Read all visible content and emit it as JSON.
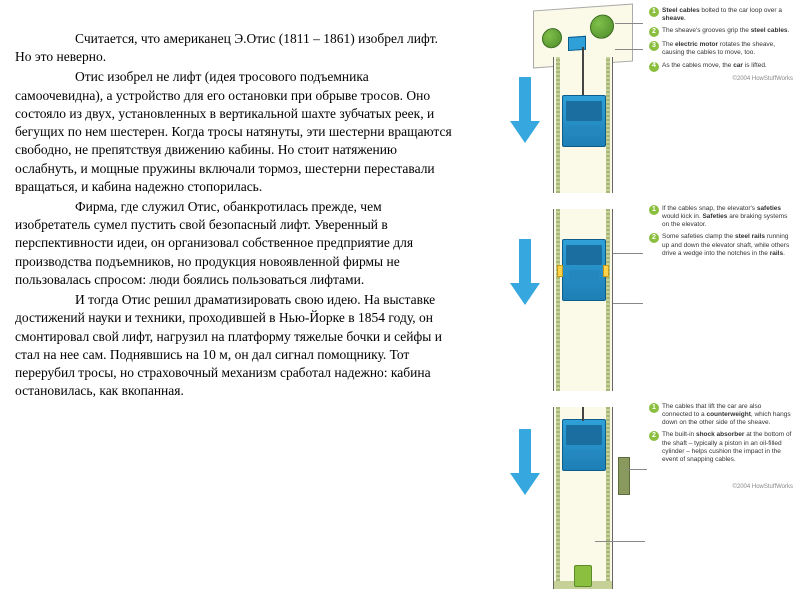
{
  "text": {
    "p1": "Считается, что американец Э.Отис (1811 – 1861) изобрел лифт. Но это неверно.",
    "p2": "Отис изобрел не лифт (идея тросового подъемника самоочевидна), а устройство для его остановки при обрыве тросов. Оно состояло из двух, установленных в вертикальной шахте зубчатых реек, и бегущих по нем шестерен. Когда тросы натянуты, эти шестерни вращаются свободно, не препятствуя движению кабины. Но стоит натяжению ослабнуть, и мощные пружины включали тормоз, шестерни переставали вращаться, и кабина надежно стопорилась.",
    "p3": "Фирма, где служил Отис, обанкротилась прежде, чем изобретатель сумел пустить свой безопасный лифт. Уверенный в перспективности идеи, он организовал собственное предприятие для производства подъемников, но продукция новоявленной фирмы не пользовалась спросом: люди боялись пользоваться лифтами.",
    "p4": "И тогда Отис решил драматизировать свою идею. На выставке достижений науки и техники, проходившей в Нью-Йорке в 1854 году, он смонтировал свой лифт, нагрузил на платформу тяжелые бочки и сейфы и стал на нее сам. Поднявшись на 10 м, он дал сигнал помощнику. Тот перерубил тросы, но страховочный механизм сработал надежно: кабина остановилась, как вкопанная."
  },
  "panels": [
    {
      "notes": [
        {
          "n": "1",
          "html": "<b>Steel cables</b> bolted to the car loop over a <b>sheave</b>."
        },
        {
          "n": "2",
          "html": "The sheave's grooves grip the <b>steel cables</b>."
        },
        {
          "n": "3",
          "html": "The <b>electric motor</b> rotates the sheave, causing the cables to move, too."
        },
        {
          "n": "4",
          "html": "As the cables move, the <b>car</b> is lifted."
        }
      ],
      "copyright": "©2004 HowStuffWorks"
    },
    {
      "notes": [
        {
          "n": "1",
          "html": "If the cables snap, the elevator's <b>safeties</b> would kick in. <b>Safeties</b> are braking systems on the elevator."
        },
        {
          "n": "2",
          "html": "Some safeties clamp the <b>steel rails</b> running up and down the elevator shaft, while others drive a wedge into the notches in the <b>rails</b>."
        }
      ],
      "copyright": ""
    },
    {
      "notes": [
        {
          "n": "1",
          "html": "The cables that lift the car are also connected to a <b>counterweight</b>, which hangs down on the other side of the sheave."
        },
        {
          "n": "2",
          "html": "The built-in <b>shock absorber</b> at the bottom of the shaft – typically a piston in an oil-filled cylinder – helps cushion the impact in the event of snapping cables."
        }
      ],
      "copyright": "©2004 HowStuffWorks"
    }
  ],
  "colors": {
    "bullet": "#8bbf3f",
    "car": "#2fa0d8",
    "arrow": "#37a8df",
    "rail": "#a8b87a",
    "shaft_bg": "#fbf9e8"
  }
}
